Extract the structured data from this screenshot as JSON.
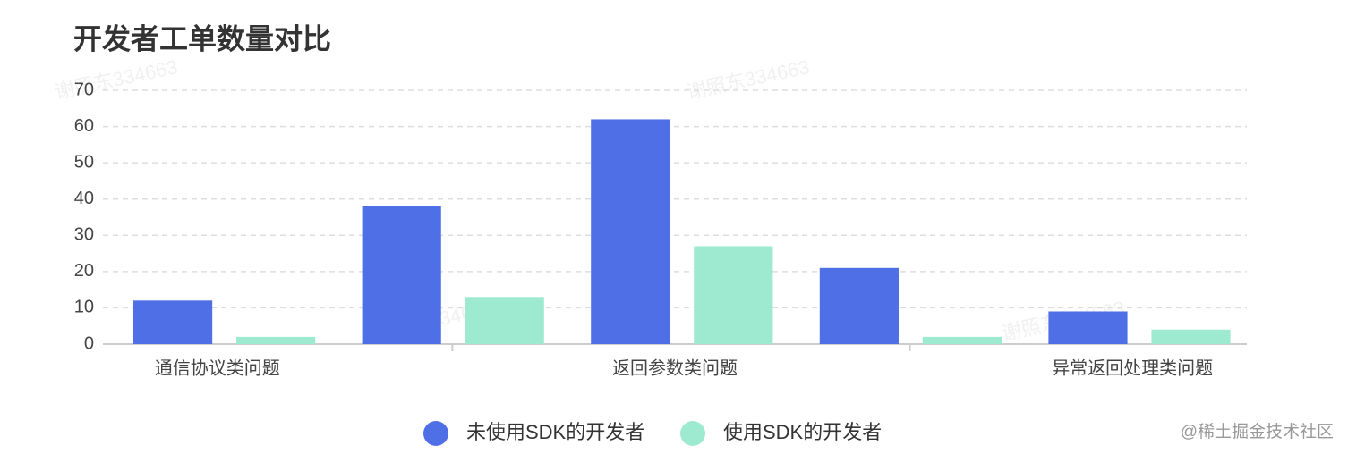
{
  "chart_data": {
    "type": "bar",
    "title": "开发者工单数量对比",
    "categories": [
      "通信协议类问题",
      null,
      "返回参数类问题",
      null,
      "异常返回处理类问题"
    ],
    "series": [
      {
        "name": "未使用SDK的开发者",
        "color": "#4e6fe6",
        "values": [
          12,
          38,
          62,
          21,
          9
        ]
      },
      {
        "name": "使用SDK的开发者",
        "color": "#9eead0",
        "values": [
          2,
          13,
          27,
          2,
          4
        ]
      }
    ],
    "ylim": [
      0,
      70
    ],
    "yticks": [
      0,
      10,
      20,
      30,
      40,
      50,
      60,
      70
    ],
    "grid": true,
    "legend": "bottom",
    "watermark": "谢照东334663",
    "credit": "@稀土掘金技术社区"
  }
}
